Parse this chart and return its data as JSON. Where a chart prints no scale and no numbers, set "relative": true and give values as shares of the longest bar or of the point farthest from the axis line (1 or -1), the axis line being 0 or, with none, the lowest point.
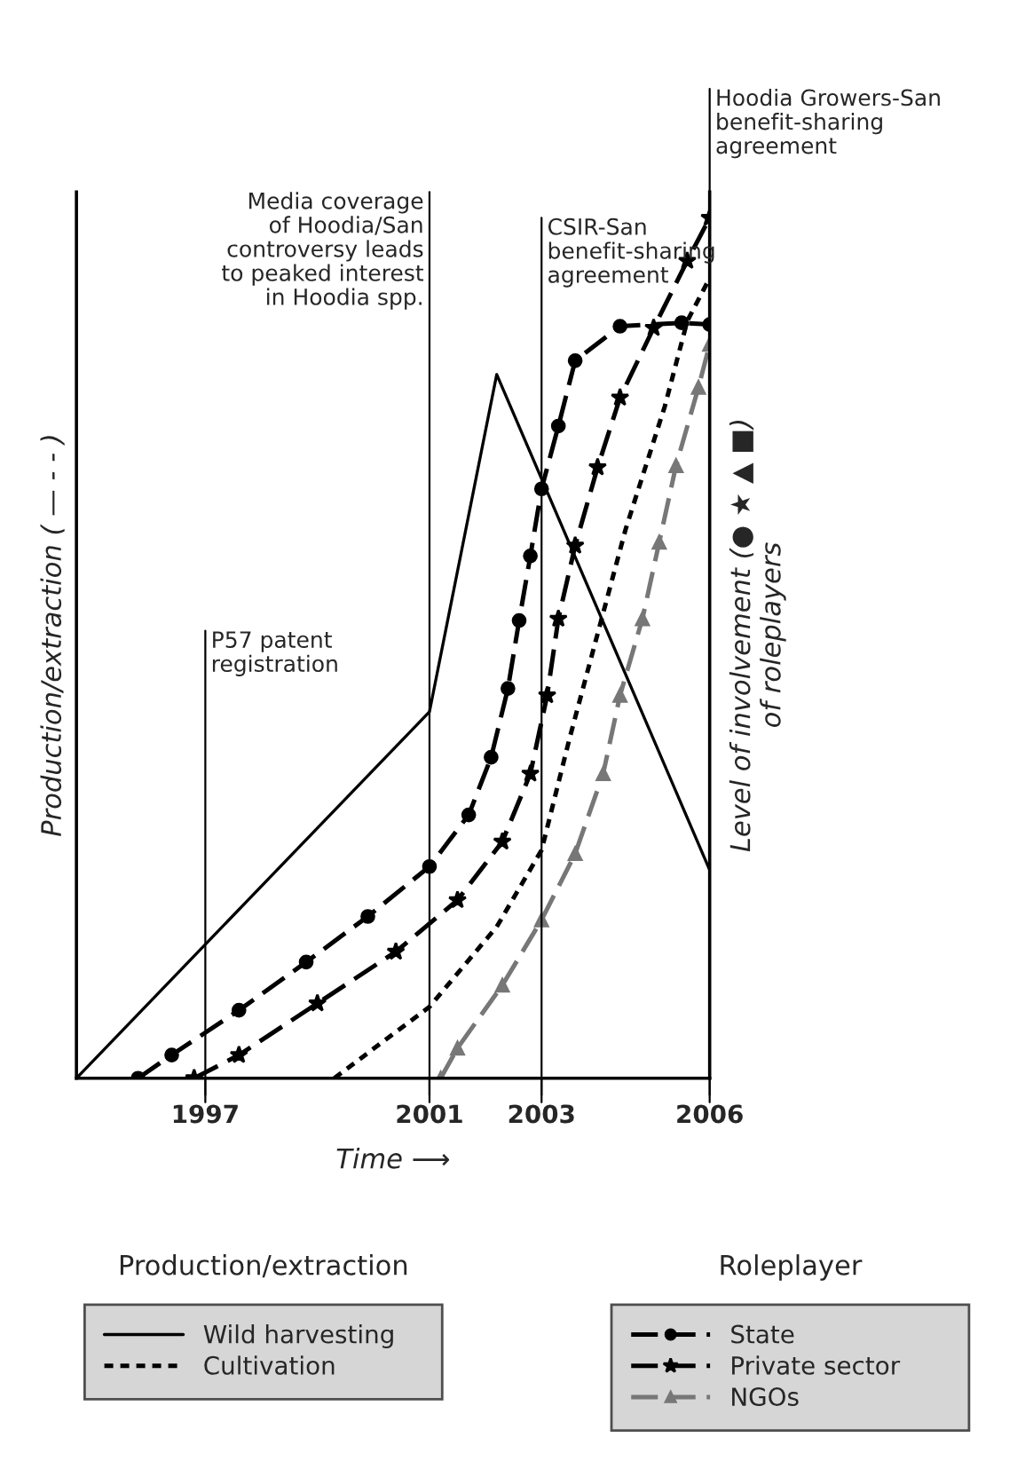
{
  "chart_data": {
    "type": "line",
    "relative": true,
    "xlabel": "Time ⟶",
    "ylabel": "Production/extraction ( — - - )",
    "y2label": "Level of involvement (● ★ ▲ ■)\nof roleplayers",
    "xlim": [
      1994.7,
      2006
    ],
    "xticks": [
      1997,
      2001,
      2003,
      2006
    ],
    "legend": "bottom",
    "legend_title": [
      "Production/extraction",
      "Roleplayer"
    ],
    "grid": false,
    "ref_lines": [
      {
        "axis": "x",
        "value": 1997,
        "label": "P57 patent\nregistration",
        "color": "#000000"
      },
      {
        "axis": "x",
        "value": 2001,
        "label": "Media coverage\nof Hoodia/San\ncontroversy leads\nto peaked interest\nin Hoodia spp.",
        "color": "#000000"
      },
      {
        "axis": "x",
        "value": 2003,
        "label": "CSIR-San\nbenefit-sharing\nagreement",
        "color": "#000000"
      },
      {
        "axis": "x",
        "value": 2006,
        "label": "Hoodia Growers-San\nbenefit-sharing\nagreement",
        "color": "#000000"
      }
    ],
    "series": [
      {
        "name": "Wild harvesting",
        "color": "#000000",
        "line_style": "solid",
        "marker": "none",
        "x": [
          1994.7,
          2001,
          2002.2,
          2006
        ],
        "values": [
          0,
          0.426,
          0.818,
          0.242
        ]
      },
      {
        "name": "Cultivation",
        "color": "#000000",
        "line_style": "dotted",
        "marker": "none",
        "x": [
          1999.3,
          2001,
          2002.2,
          2003,
          2003.5,
          2004.5,
          2005.2,
          2005.6,
          2006
        ],
        "values": [
          0,
          0.083,
          0.176,
          0.265,
          0.395,
          0.638,
          0.781,
          0.88,
          0.93
        ]
      },
      {
        "name": "State",
        "color": "#000000",
        "line_style": "dashed",
        "marker": "circle",
        "x": [
          1995.8,
          1996.4,
          1997.6,
          1998.8,
          1999.9,
          2001.0,
          2001.7,
          2002.1,
          2002.4,
          2002.6,
          2002.8,
          2003,
          2003.3,
          2003.6,
          2004.4,
          2005.5,
          2006
        ],
        "values": [
          0,
          0.027,
          0.079,
          0.135,
          0.188,
          0.246,
          0.306,
          0.373,
          0.453,
          0.532,
          0.607,
          0.685,
          0.758,
          0.834,
          0.874,
          0.878,
          0.876
        ]
      },
      {
        "name": "Private sector",
        "color": "#000000",
        "line_style": "dashed",
        "marker": "star",
        "x": [
          1996.8,
          1997.6,
          1999.0,
          2000.4,
          2001.5,
          2002.3,
          2002.8,
          2003.1,
          2003.3,
          2003.6,
          2004.0,
          2004.4,
          2005.0,
          2005.6,
          2006
        ],
        "values": [
          0,
          0.027,
          0.087,
          0.147,
          0.207,
          0.275,
          0.354,
          0.445,
          0.534,
          0.619,
          0.71,
          0.791,
          0.872,
          0.95,
          1.0
        ]
      },
      {
        "name": "NGOs",
        "color": "#777777",
        "line_style": "dashed",
        "marker": "triangle",
        "x": [
          2001.2,
          2001.5,
          2002.3,
          2003.0,
          2003.6,
          2004.1,
          2004.4,
          2004.8,
          2005.1,
          2005.4,
          2005.8,
          2006
        ],
        "values": [
          0,
          0.035,
          0.108,
          0.184,
          0.261,
          0.354,
          0.445,
          0.534,
          0.623,
          0.712,
          0.803,
          0.853
        ]
      }
    ]
  }
}
